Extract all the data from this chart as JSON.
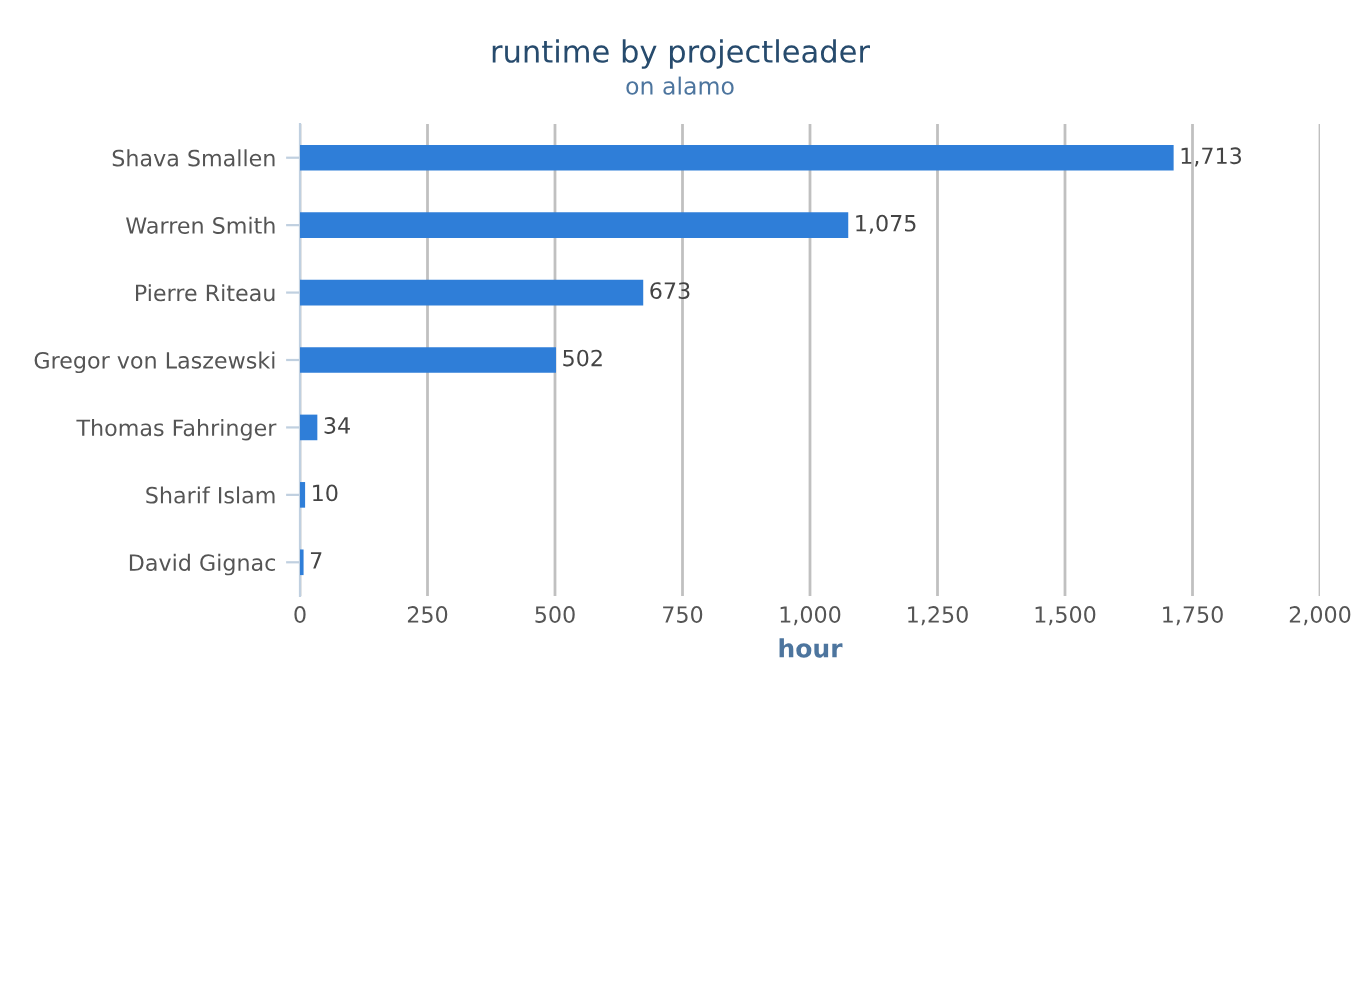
{
  "chart_data": {
    "type": "bar",
    "orientation": "horizontal",
    "title": "runtime by projectleader",
    "subtitle": "on alamo",
    "xlabel": "hour",
    "categories": [
      "Shava Smallen",
      "Warren Smith",
      "Pierre Riteau",
      "Gregor von Laszewski",
      "Thomas Fahringer",
      "Sharif Islam",
      "David Gignac"
    ],
    "values": [
      1713,
      1075,
      673,
      502,
      34,
      10,
      7
    ],
    "value_labels": [
      "1,713",
      "1,075",
      "673",
      "502",
      "34",
      "10",
      "7"
    ],
    "color": "#2f7ed8",
    "xlim": [
      0,
      2000
    ],
    "xticks": [
      0,
      250,
      500,
      750,
      {
        "value": 1000,
        "label": "1,000"
      },
      {
        "value": 1250,
        "label": "1,250"
      },
      {
        "value": 1500,
        "label": "1,500"
      },
      {
        "value": 1750,
        "label": "1,750"
      },
      {
        "value": 2000,
        "label": "2,000"
      }
    ],
    "grid": "x",
    "legend": false
  }
}
